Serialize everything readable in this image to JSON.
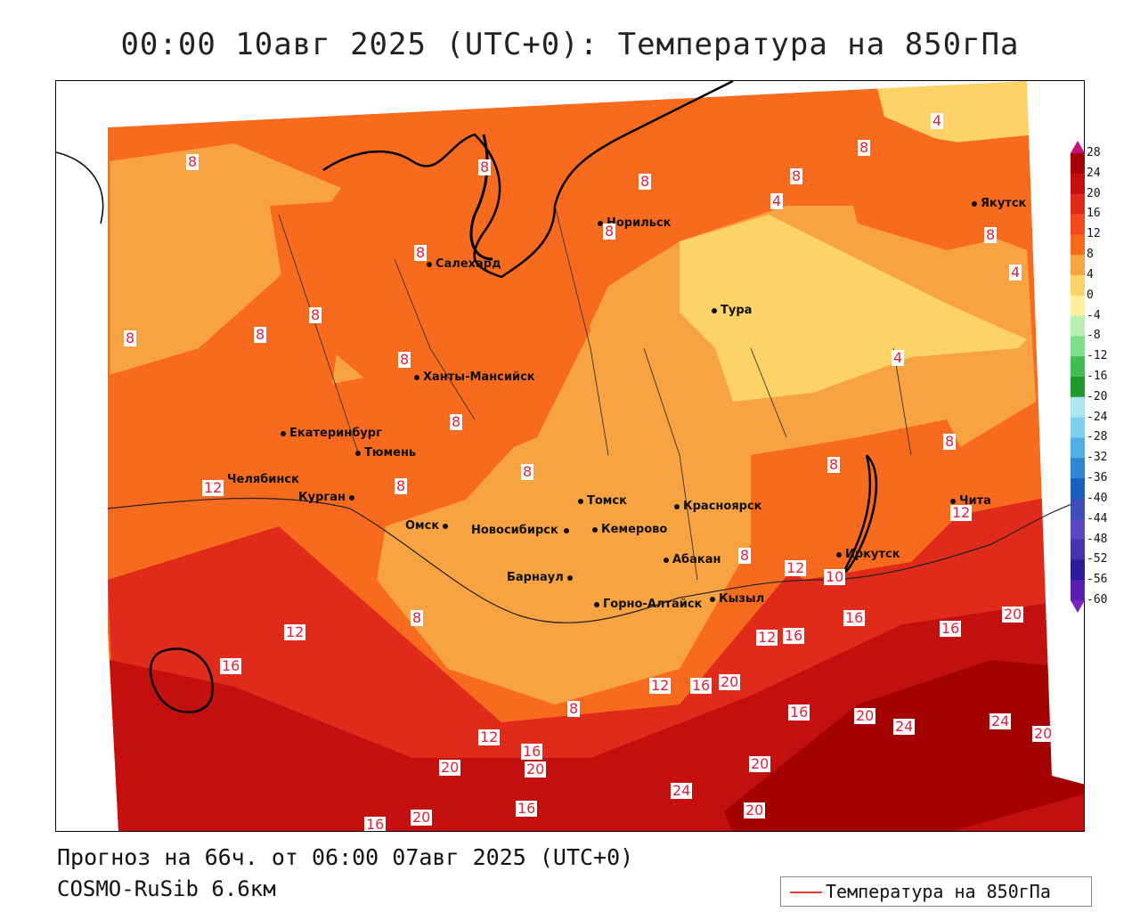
{
  "title": "00:00 10авг 2025 (UTC+0): Температура на 850гПа",
  "footer": {
    "forecast": "Прогноз на 66ч. от 06:00 07авг 2025 (UTC+0)",
    "model": "COSMO-RuSib 6.6км"
  },
  "legend": {
    "label": "Температура на 850гПа",
    "line_color": "#e63b2e"
  },
  "colorbar": {
    "labels": [
      "28",
      "24",
      "20",
      "16",
      "12",
      "8",
      "4",
      "0",
      "-4",
      "-8",
      "-12",
      "-16",
      "-20",
      "-24",
      "-28",
      "-32",
      "-36",
      "-40",
      "-44",
      "-48",
      "-52",
      "-56",
      "-60"
    ],
    "colors": [
      "#c8107a",
      "#a30000",
      "#c40f0f",
      "#e02a1a",
      "#f04a1e",
      "#f86b1e",
      "#f7a341",
      "#fdd267",
      "#fff19a",
      "#b8f0b0",
      "#7fe08a",
      "#3fbf52",
      "#1c9c2c",
      "#aee6f0",
      "#7fd0ec",
      "#4fb0e6",
      "#2b86d6",
      "#1a5fbf",
      "#3a4fb8",
      "#5b47c4",
      "#4533b0",
      "#2a1c9a",
      "#5a1fb0",
      "#7a22c6"
    ]
  },
  "cities": [
    {
      "name": "Салехард"
    },
    {
      "name": "Норильск"
    },
    {
      "name": "Тура"
    },
    {
      "name": "Якутск"
    },
    {
      "name": "Ханты-Мансийск"
    },
    {
      "name": "Екатеринбург"
    },
    {
      "name": "Тюмень"
    },
    {
      "name": "Челябинск"
    },
    {
      "name": "Курган"
    },
    {
      "name": "Омск"
    },
    {
      "name": "Новосибирск"
    },
    {
      "name": "Томск"
    },
    {
      "name": "Кемерово"
    },
    {
      "name": "Красноярск"
    },
    {
      "name": "Барнаул"
    },
    {
      "name": "Абакан"
    },
    {
      "name": "Иркутск"
    },
    {
      "name": "Чита"
    },
    {
      "name": "Горно-Алтайск"
    },
    {
      "name": "Кызыл"
    }
  ],
  "contour_labels": [
    "8",
    "8",
    "8",
    "8",
    "8",
    "4",
    "8",
    "4",
    "8",
    "4",
    "8",
    "8",
    "8",
    "8",
    "8",
    "8",
    "8",
    "12",
    "8",
    "8",
    "8",
    "8",
    "4",
    "8",
    "12",
    "12",
    "10",
    "16",
    "12",
    "16",
    "20",
    "12",
    "16",
    "12",
    "20",
    "16",
    "16",
    "20",
    "24",
    "24",
    "20",
    "16",
    "12",
    "16",
    "20",
    "20",
    "20",
    "24",
    "20",
    "16",
    "20",
    "12",
    "16",
    "8"
  ]
}
